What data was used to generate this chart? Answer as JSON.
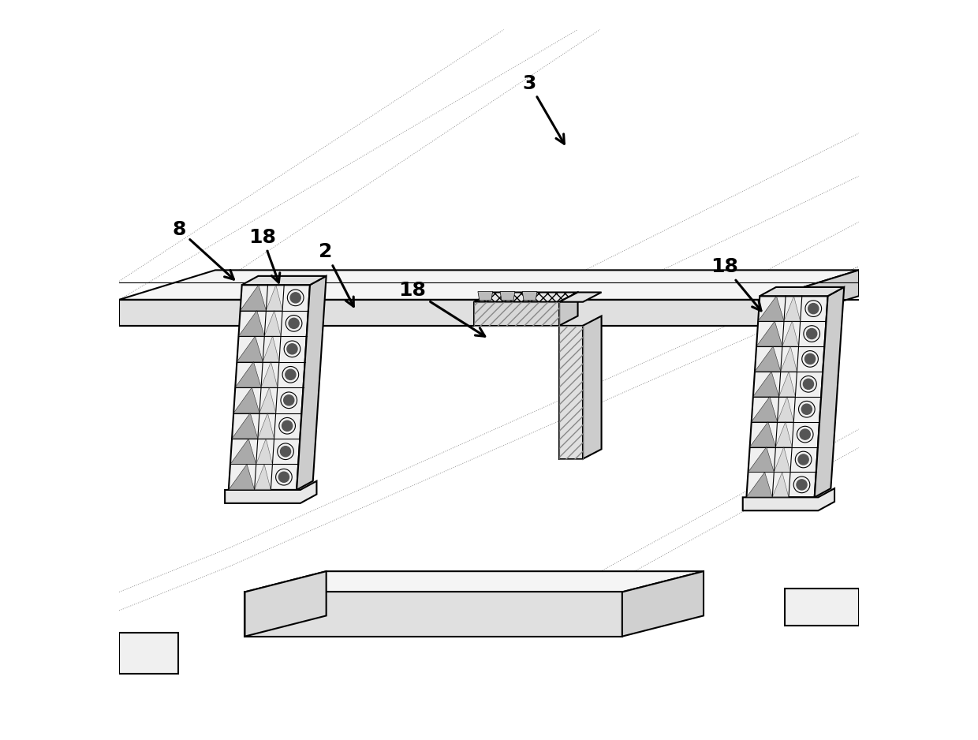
{
  "background_color": "#ffffff",
  "line_color": "#000000",
  "figsize": [
    12.4,
    9.38
  ],
  "dpi": 100,
  "labels": [
    {
      "text": "3",
      "xt": 0.545,
      "yt": 0.88,
      "xa": 0.605,
      "ya": 0.8
    },
    {
      "text": "8",
      "xt": 0.072,
      "yt": 0.682,
      "xa": 0.16,
      "ya": 0.618
    },
    {
      "text": "18",
      "xt": 0.175,
      "yt": 0.672,
      "xa": 0.218,
      "ya": 0.612
    },
    {
      "text": "2",
      "xt": 0.27,
      "yt": 0.652,
      "xa": 0.32,
      "ya": 0.58
    },
    {
      "text": "18",
      "xt": 0.378,
      "yt": 0.6,
      "xa": 0.5,
      "ya": 0.542
    },
    {
      "text": "18",
      "xt": 0.8,
      "yt": 0.632,
      "xa": 0.872,
      "ya": 0.575
    }
  ]
}
